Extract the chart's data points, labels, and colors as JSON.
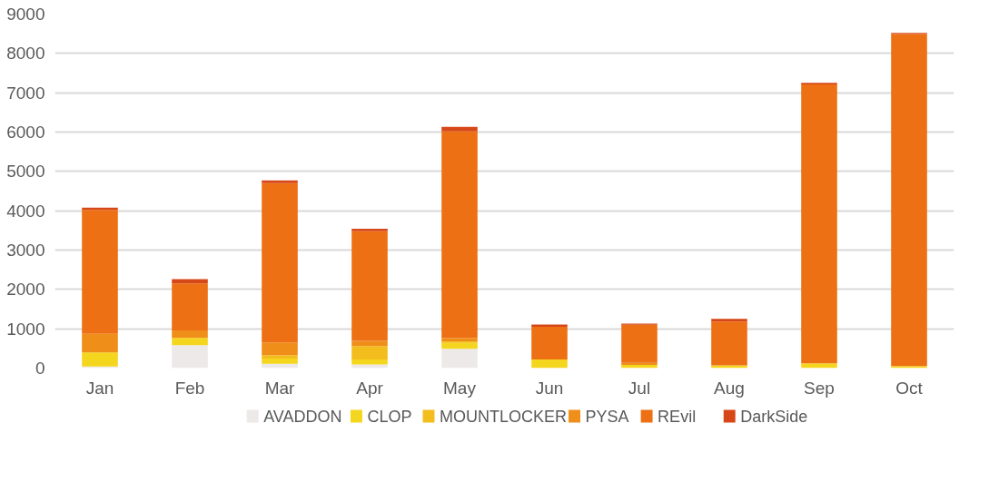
{
  "chart_data": {
    "type": "bar",
    "stacked": true,
    "categories": [
      "Jan",
      "Feb",
      "Mar",
      "Apr",
      "May",
      "Jun",
      "Jul",
      "Aug",
      "Sep",
      "Oct"
    ],
    "series": [
      {
        "name": "AVADDON",
        "color": "#ede9e8",
        "values": [
          40,
          580,
          110,
          90,
          490,
          0,
          0,
          0,
          0,
          0
        ]
      },
      {
        "name": "CLOP",
        "color": "#f5d61f",
        "values": [
          360,
          190,
          130,
          130,
          150,
          220,
          80,
          70,
          120,
          50
        ]
      },
      {
        "name": "MOUNTLOCKER",
        "color": "#f4bd1e",
        "values": [
          0,
          0,
          90,
          340,
          40,
          0,
          0,
          0,
          0,
          0
        ]
      },
      {
        "name": "PYSA",
        "color": "#f08e1a",
        "values": [
          470,
          190,
          320,
          130,
          90,
          0,
          50,
          0,
          0,
          0
        ]
      },
      {
        "name": "REvil",
        "color": "#ed7014",
        "values": [
          3150,
          1190,
          4050,
          2790,
          5250,
          830,
          970,
          1110,
          7090,
          8440
        ]
      },
      {
        "name": "DarkSide",
        "color": "#d74818",
        "values": [
          60,
          110,
          70,
          60,
          110,
          60,
          30,
          70,
          40,
          30
        ]
      }
    ],
    "ylim": [
      0,
      9000
    ],
    "yticks": [
      0,
      1000,
      2000,
      3000,
      4000,
      5000,
      6000,
      7000,
      8000,
      9000
    ],
    "grid": "y",
    "legend": "bottom"
  }
}
